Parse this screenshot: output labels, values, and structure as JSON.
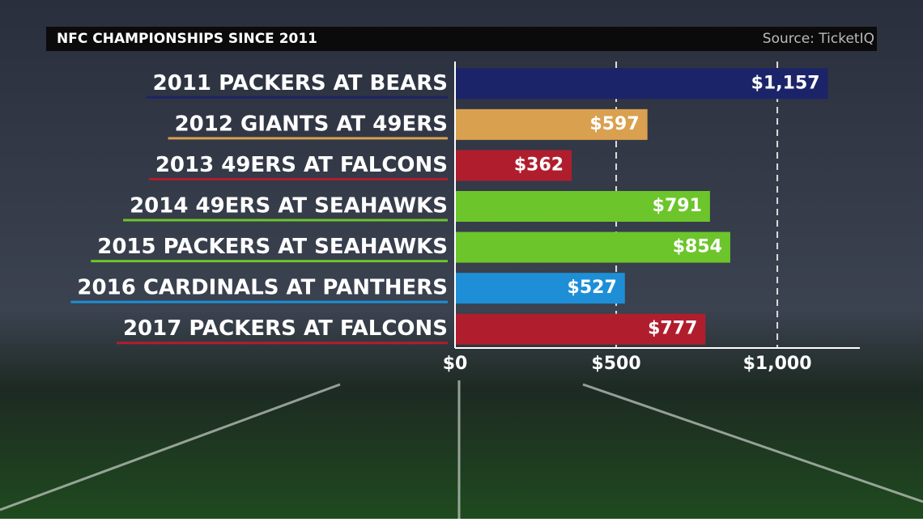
{
  "chart_data": {
    "type": "bar",
    "orientation": "horizontal",
    "title": "NFC CHAMPIONSHIPS SINCE 2011",
    "source": "Source: TicketIQ",
    "categories": [
      "2011 PACKERS AT BEARS",
      "2012 GIANTS AT 49ERS",
      "2013 49ERS AT FALCONS",
      "2014 49ERS AT SEAHAWKS",
      "2015 PACKERS AT SEAHAWKS",
      "2016 CARDINALS AT PANTHERS",
      "2017 PACKERS AT FALCONS"
    ],
    "values": [
      1157,
      597,
      362,
      791,
      854,
      527,
      777
    ],
    "value_labels": [
      "$1,157",
      "$597",
      "$362",
      "$791",
      "$854",
      "$527",
      "$777"
    ],
    "colors": [
      "#1b2469",
      "#d9a050",
      "#b01e2e",
      "#6cc52a",
      "#6cc52a",
      "#1e8fd6",
      "#b01e2e"
    ],
    "xlim": [
      0,
      1256
    ],
    "xticks": [
      {
        "value": 0,
        "label": "$0"
      },
      {
        "value": 500,
        "label": "$500"
      },
      {
        "value": 1000,
        "label": "$1,000"
      }
    ],
    "grid": true
  }
}
